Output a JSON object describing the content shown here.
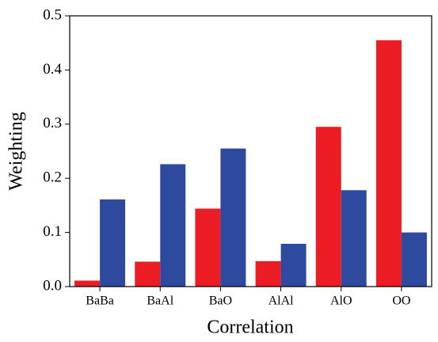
{
  "chart_data": {
    "type": "bar",
    "x_label": "Correlation",
    "y_label": "Weighting",
    "categories": [
      "BaBa",
      "BaAl",
      "BaO",
      "AlAl",
      "AlO",
      "OO"
    ],
    "series": [
      {
        "color": "#ec1c24",
        "values": [
          0.011,
          0.046,
          0.144,
          0.047,
          0.295,
          0.455
        ]
      },
      {
        "color": "#2e4a9e",
        "values": [
          0.161,
          0.226,
          0.255,
          0.079,
          0.178,
          0.1
        ]
      }
    ],
    "ylim": [
      0,
      0.5
    ],
    "yticks": [
      {
        "value": 0,
        "label": "0.0"
      },
      0.1,
      0.2,
      0.3,
      0.4,
      0.5
    ]
  }
}
